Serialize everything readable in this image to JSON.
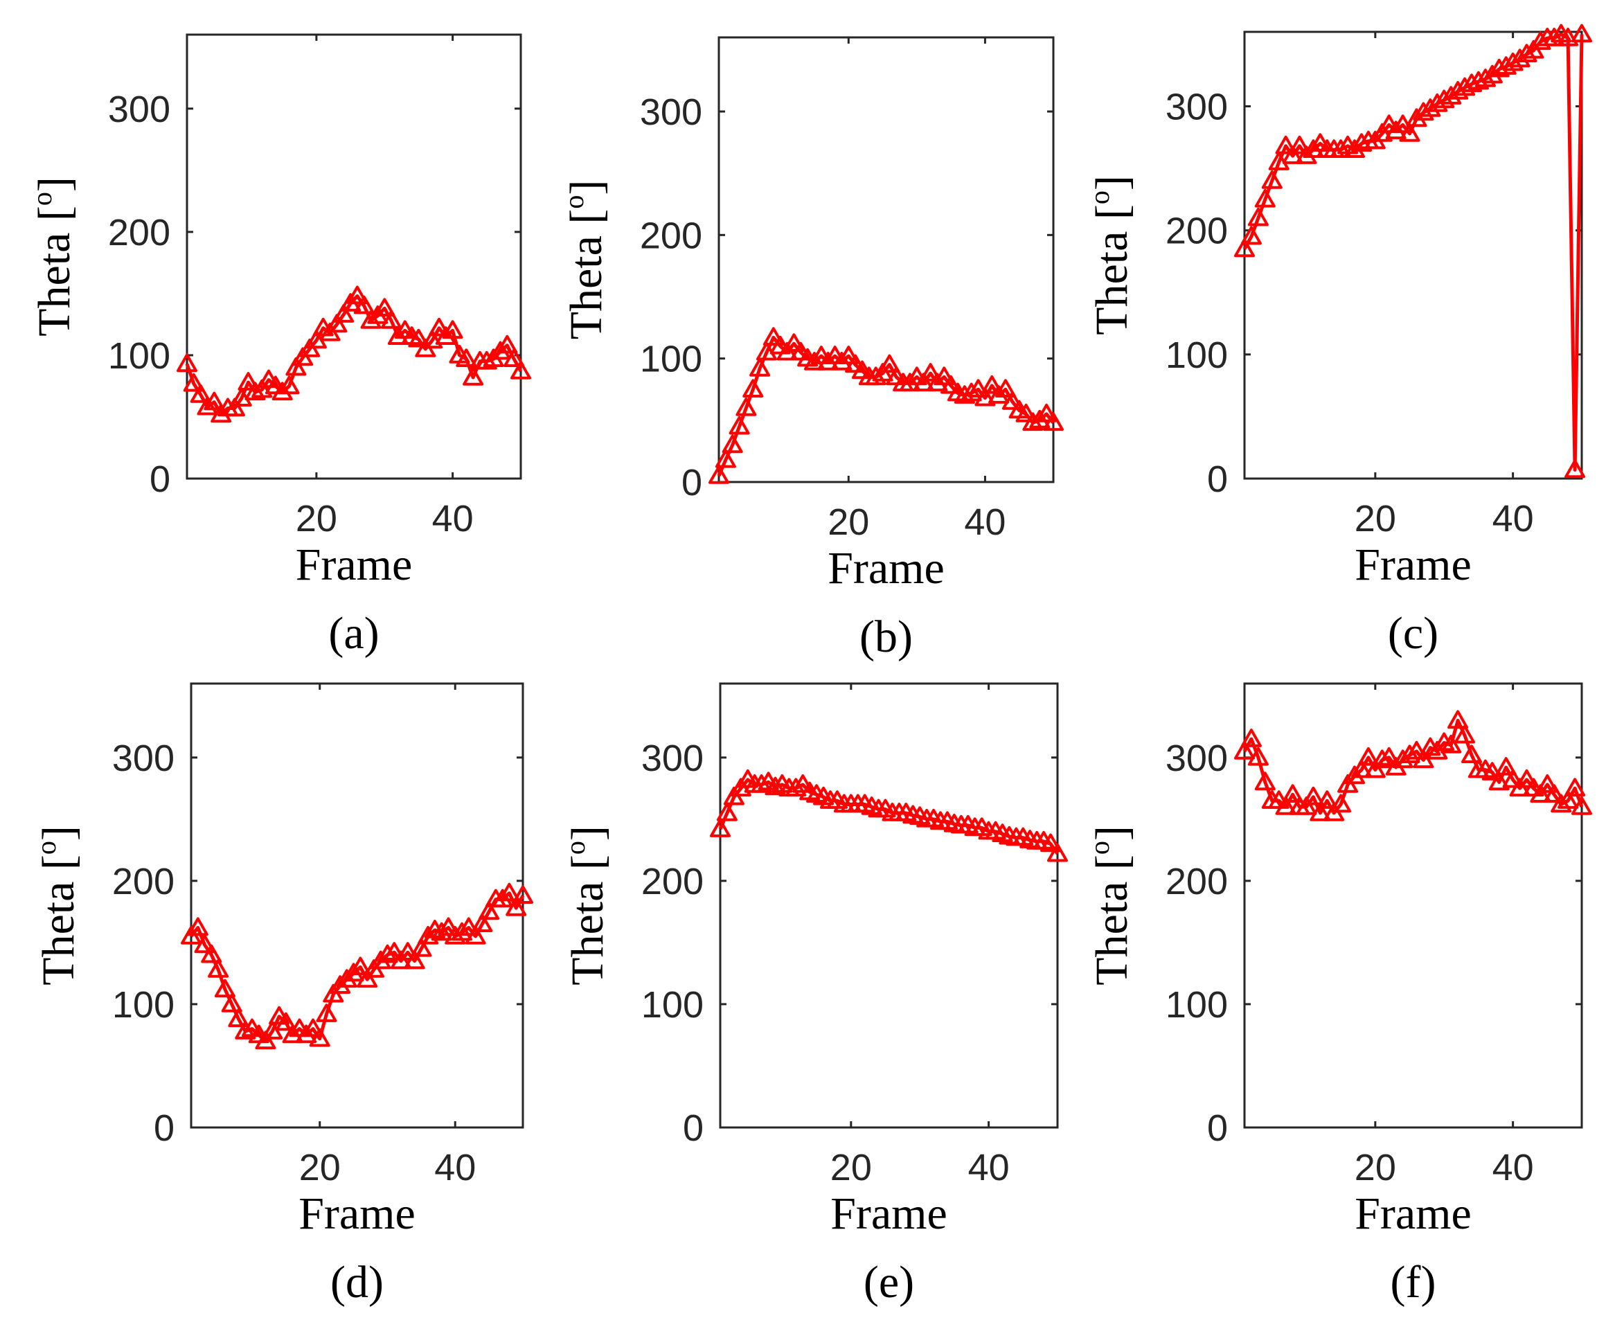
{
  "chart_data": [
    {
      "type": "line",
      "caption": "(a)",
      "xlabel": "Frame",
      "ylabel": "Theta [",
      "ylabel_sup": "o",
      "ylabel_close": "]",
      "xlim": [
        1,
        50
      ],
      "ylim": [
        0,
        360
      ],
      "xticks": [
        20,
        40
      ],
      "yticks": [
        0,
        100,
        200,
        300
      ],
      "grid": true,
      "marker": "triangle",
      "color": "#ff0000",
      "x": [
        1,
        2,
        3,
        4,
        5,
        6,
        7,
        8,
        9,
        10,
        11,
        12,
        13,
        14,
        15,
        16,
        17,
        18,
        19,
        20,
        21,
        22,
        23,
        24,
        25,
        26,
        27,
        28,
        29,
        30,
        31,
        32,
        33,
        34,
        35,
        36,
        37,
        38,
        39,
        40,
        41,
        42,
        43,
        44,
        45,
        46,
        47,
        48,
        49,
        50
      ],
      "y": [
        93,
        77,
        68,
        58,
        62,
        52,
        57,
        57,
        65,
        78,
        70,
        72,
        80,
        75,
        70,
        75,
        90,
        98,
        105,
        112,
        122,
        118,
        125,
        133,
        142,
        148,
        140,
        128,
        132,
        138,
        128,
        115,
        120,
        115,
        113,
        105,
        112,
        122,
        115,
        120,
        100,
        97,
        82,
        95,
        95,
        97,
        103,
        108,
        97,
        87
      ]
    },
    {
      "type": "line",
      "caption": "(b)",
      "xlabel": "Frame",
      "ylabel": "Theta [",
      "ylabel_sup": "o",
      "ylabel_close": "]",
      "xlim": [
        1,
        50
      ],
      "ylim": [
        0,
        360
      ],
      "xticks": [
        20,
        40
      ],
      "yticks": [
        0,
        100,
        200,
        300
      ],
      "grid": true,
      "marker": "triangle",
      "color": "#ff0000",
      "x": [
        1,
        2,
        3,
        4,
        5,
        6,
        7,
        8,
        9,
        10,
        11,
        12,
        13,
        14,
        15,
        16,
        17,
        18,
        19,
        20,
        21,
        22,
        23,
        24,
        25,
        26,
        27,
        28,
        29,
        30,
        31,
        32,
        33,
        34,
        35,
        36,
        37,
        38,
        39,
        40,
        41,
        42,
        43,
        44,
        45,
        46,
        47,
        48,
        49,
        50
      ],
      "y": [
        5,
        18,
        30,
        45,
        60,
        75,
        92,
        105,
        117,
        110,
        105,
        112,
        105,
        100,
        97,
        102,
        97,
        102,
        97,
        102,
        95,
        90,
        85,
        85,
        88,
        95,
        85,
        80,
        80,
        85,
        80,
        88,
        80,
        85,
        78,
        72,
        70,
        72,
        75,
        68,
        78,
        70,
        75,
        65,
        58,
        55,
        48,
        50,
        55,
        48
      ]
    },
    {
      "type": "line",
      "caption": "(c)",
      "xlabel": "Frame",
      "ylabel": "Theta [",
      "ylabel_sup": "o",
      "ylabel_close": "]",
      "xlim": [
        1,
        50
      ],
      "ylim": [
        0,
        360
      ],
      "xticks": [
        20,
        40
      ],
      "yticks": [
        0,
        100,
        200,
        300
      ],
      "grid": true,
      "marker": "triangle",
      "color": "#ff0000",
      "x": [
        1,
        2,
        3,
        4,
        5,
        6,
        7,
        8,
        9,
        10,
        11,
        12,
        13,
        14,
        15,
        16,
        17,
        18,
        19,
        20,
        21,
        22,
        23,
        24,
        25,
        26,
        27,
        28,
        29,
        30,
        31,
        32,
        33,
        34,
        35,
        36,
        37,
        38,
        39,
        40,
        41,
        42,
        43,
        44,
        45,
        46,
        47,
        48,
        49,
        50
      ],
      "y": [
        185,
        195,
        210,
        225,
        240,
        255,
        268,
        260,
        268,
        260,
        265,
        270,
        265,
        265,
        265,
        268,
        265,
        270,
        272,
        272,
        278,
        285,
        280,
        285,
        278,
        290,
        295,
        298,
        302,
        305,
        308,
        312,
        315,
        318,
        320,
        322,
        325,
        330,
        332,
        335,
        338,
        342,
        345,
        352,
        355,
        355,
        358,
        355,
        7,
        358
      ]
    },
    {
      "type": "line",
      "caption": "(d)",
      "xlabel": "Frame",
      "ylabel": "Theta [",
      "ylabel_sup": "o",
      "ylabel_close": "]",
      "xlim": [
        1,
        50
      ],
      "ylim": [
        0,
        360
      ],
      "xticks": [
        20,
        40
      ],
      "yticks": [
        0,
        100,
        200,
        300
      ],
      "grid": true,
      "marker": "triangle",
      "color": "#ff0000",
      "x": [
        1,
        2,
        3,
        4,
        5,
        6,
        7,
        8,
        9,
        10,
        11,
        12,
        13,
        14,
        15,
        16,
        17,
        18,
        19,
        20,
        21,
        22,
        23,
        24,
        25,
        26,
        27,
        28,
        29,
        30,
        31,
        32,
        33,
        34,
        35,
        36,
        37,
        38,
        39,
        40,
        41,
        42,
        43,
        44,
        45,
        46,
        47,
        48,
        49,
        50
      ],
      "y": [
        155,
        162,
        148,
        140,
        128,
        112,
        100,
        88,
        78,
        80,
        75,
        70,
        78,
        90,
        85,
        75,
        80,
        75,
        80,
        72,
        92,
        108,
        115,
        120,
        125,
        130,
        120,
        128,
        135,
        140,
        142,
        135,
        142,
        135,
        145,
        155,
        160,
        158,
        162,
        155,
        158,
        162,
        155,
        165,
        175,
        185,
        185,
        190,
        178,
        188
      ]
    },
    {
      "type": "line",
      "caption": "(e)",
      "xlabel": "Frame",
      "ylabel": "Theta [",
      "ylabel_sup": "o",
      "ylabel_close": "]",
      "xlim": [
        1,
        50
      ],
      "ylim": [
        0,
        360
      ],
      "xticks": [
        20,
        40
      ],
      "yticks": [
        0,
        100,
        200,
        300
      ],
      "grid": true,
      "marker": "triangle",
      "color": "#ff0000",
      "x": [
        1,
        2,
        3,
        4,
        5,
        6,
        7,
        8,
        9,
        10,
        11,
        12,
        13,
        14,
        15,
        16,
        17,
        18,
        19,
        20,
        21,
        22,
        23,
        24,
        25,
        26,
        27,
        28,
        29,
        30,
        31,
        32,
        33,
        34,
        35,
        36,
        37,
        38,
        39,
        40,
        41,
        42,
        43,
        44,
        45,
        46,
        47,
        48,
        49,
        50
      ],
      "y": [
        242,
        255,
        268,
        275,
        282,
        278,
        278,
        280,
        276,
        278,
        275,
        275,
        278,
        272,
        270,
        268,
        265,
        265,
        262,
        262,
        262,
        262,
        260,
        258,
        258,
        255,
        255,
        255,
        253,
        252,
        250,
        250,
        248,
        248,
        246,
        245,
        245,
        243,
        243,
        240,
        240,
        238,
        236,
        235,
        235,
        233,
        232,
        232,
        230,
        222
      ]
    },
    {
      "type": "line",
      "caption": "(f)",
      "xlabel": "Frame",
      "ylabel": "Theta [",
      "ylabel_sup": "o",
      "ylabel_close": "]",
      "xlim": [
        1,
        50
      ],
      "ylim": [
        0,
        360
      ],
      "xticks": [
        20,
        40
      ],
      "yticks": [
        0,
        100,
        200,
        300
      ],
      "grid": true,
      "marker": "triangle",
      "color": "#ff0000",
      "x": [
        1,
        2,
        3,
        4,
        5,
        6,
        7,
        8,
        9,
        10,
        11,
        12,
        13,
        14,
        15,
        16,
        17,
        18,
        19,
        20,
        21,
        22,
        23,
        24,
        25,
        26,
        27,
        28,
        29,
        30,
        31,
        32,
        33,
        34,
        35,
        36,
        37,
        38,
        39,
        40,
        41,
        42,
        43,
        44,
        45,
        46,
        47,
        48,
        49,
        50
      ],
      "y": [
        305,
        315,
        300,
        280,
        265,
        265,
        260,
        270,
        260,
        260,
        268,
        255,
        265,
        255,
        262,
        278,
        285,
        290,
        300,
        290,
        298,
        300,
        292,
        298,
        302,
        305,
        298,
        308,
        305,
        312,
        310,
        330,
        318,
        302,
        290,
        290,
        288,
        280,
        292,
        282,
        275,
        282,
        275,
        270,
        278,
        270,
        262,
        265,
        275,
        260
      ]
    }
  ]
}
